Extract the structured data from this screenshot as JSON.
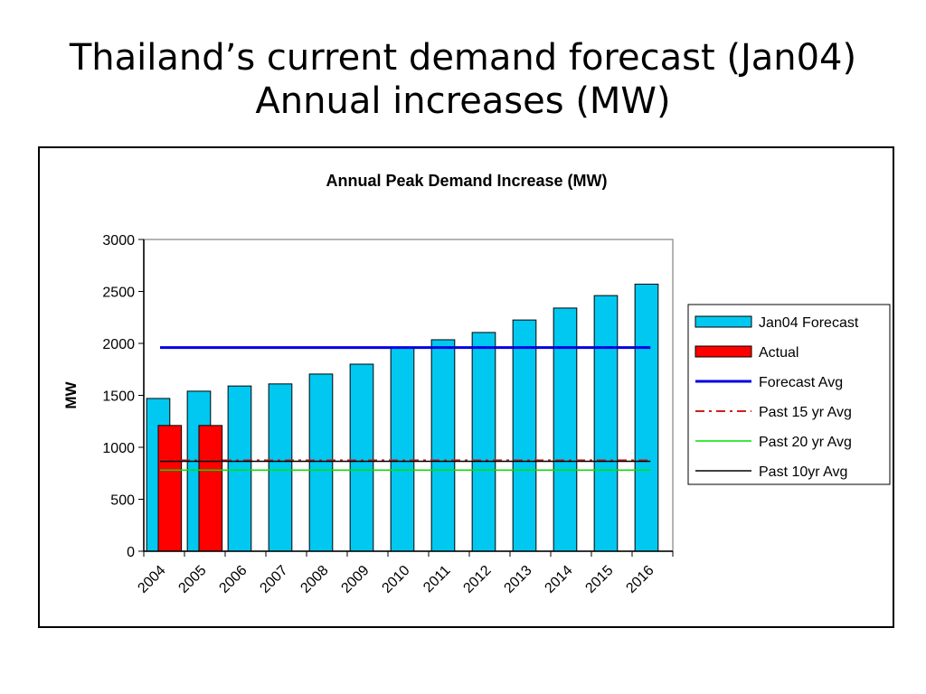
{
  "slide": {
    "title_line1": "Thailand’s current demand forecast (Jan04)",
    "title_line2": "Annual increases (MW)"
  },
  "chart_data": {
    "type": "bar",
    "title": "Annual Peak Demand Increase (MW)",
    "xlabel": "",
    "ylabel": "MW",
    "ylim": [
      0,
      3000
    ],
    "yticks": [
      0,
      500,
      1000,
      1500,
      2000,
      2500,
      3000
    ],
    "grid": false,
    "legend_position": "right",
    "categories": [
      "2004",
      "2005",
      "2006",
      "2007",
      "2008",
      "2009",
      "2010",
      "2011",
      "2012",
      "2013",
      "2014",
      "2015",
      "2016"
    ],
    "series": [
      {
        "name": "Jan04 Forecast",
        "kind": "bar",
        "color": "#00c8f0",
        "values": [
          1470,
          1540,
          1590,
          1610,
          1705,
          1800,
          1960,
          2035,
          2105,
          2225,
          2340,
          2460,
          2570
        ]
      },
      {
        "name": "Actual",
        "kind": "bar",
        "color": "#ff0000",
        "values": [
          1210,
          1210,
          null,
          null,
          null,
          null,
          null,
          null,
          null,
          null,
          null,
          null,
          null
        ]
      },
      {
        "name": "Forecast Avg",
        "kind": "hline",
        "color": "#0000e0",
        "style": "solid",
        "value": 1960
      },
      {
        "name": "Past 15 yr Avg",
        "kind": "hline",
        "color": "#d02020",
        "style": "dashdot",
        "value": 875
      },
      {
        "name": "Past 20 yr Avg",
        "kind": "hline",
        "color": "#00e000",
        "style": "solid",
        "value": 780
      },
      {
        "name": "Past 10yr Avg",
        "kind": "hline",
        "color": "#000000",
        "style": "solid",
        "value": 865
      }
    ]
  }
}
